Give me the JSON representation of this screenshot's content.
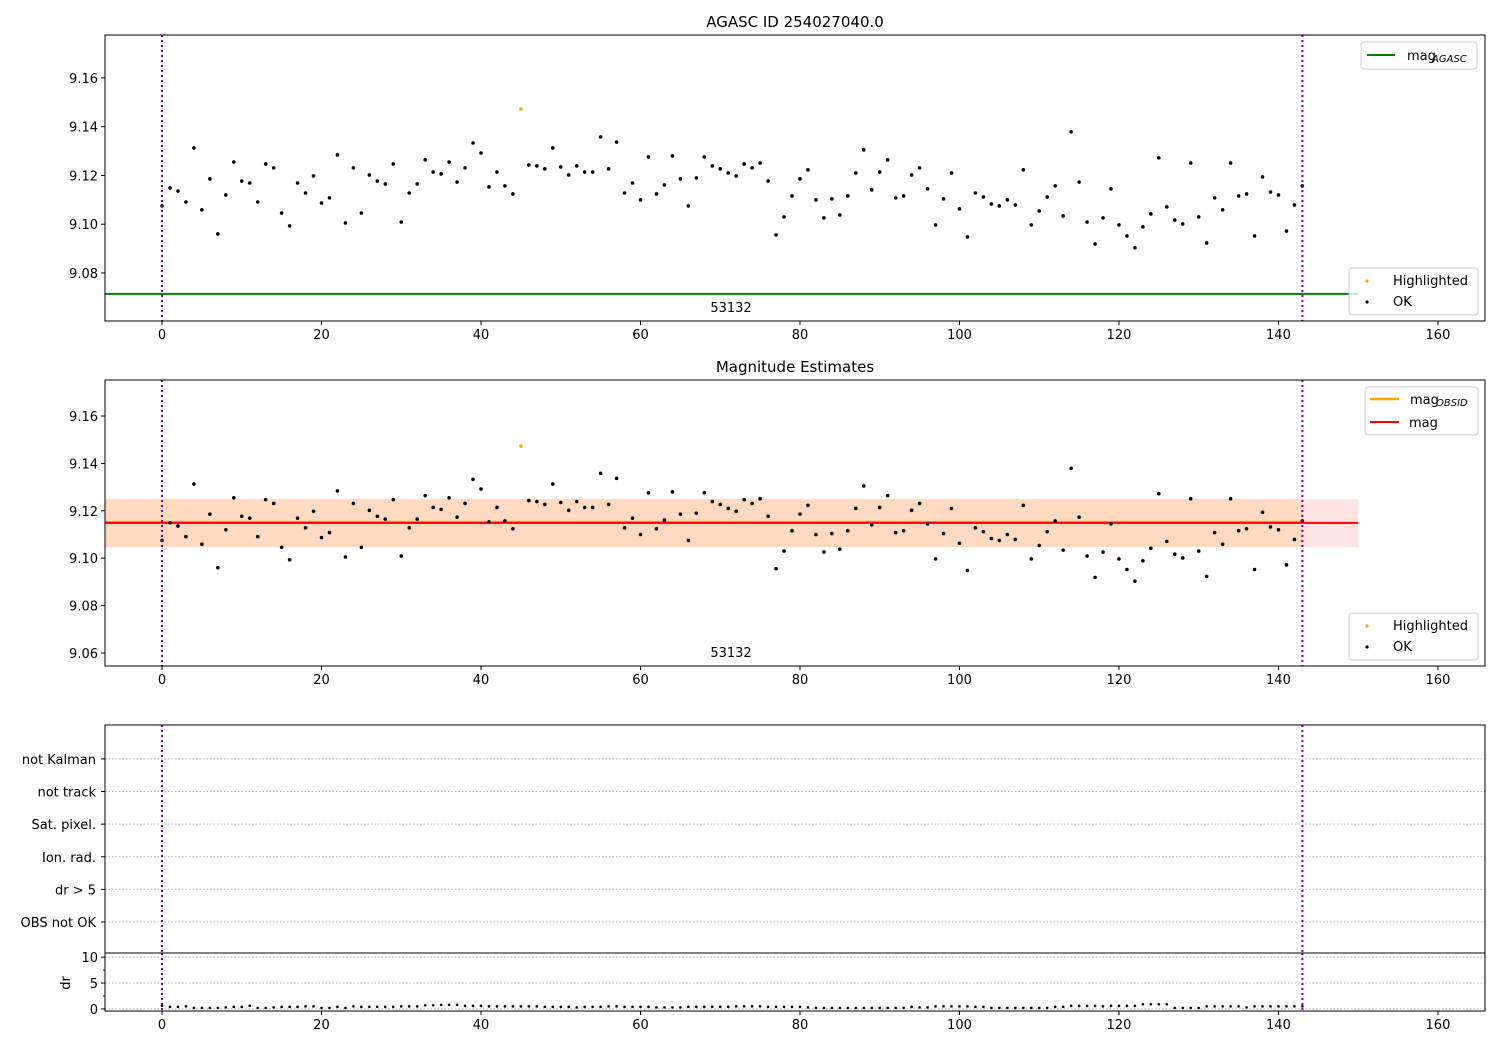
{
  "chart_data": [
    {
      "type": "scatter",
      "title": "AGASC ID 254027040.0",
      "xlim": [
        -7.15,
        165.9
      ],
      "ylim": [
        9.0603,
        9.1776
      ],
      "xticks": [
        0,
        20,
        40,
        60,
        80,
        100,
        120,
        140,
        160
      ],
      "yticks": [
        9.08,
        9.1,
        9.12,
        9.14,
        9.16
      ],
      "ytick_labels": [
        "9.08",
        "9.10",
        "9.12",
        "9.14",
        "9.16"
      ],
      "mag_agasc": 9.0714,
      "mag_agasc_xrange": [
        -7.15,
        150
      ],
      "annotation": "53132",
      "annotation_x": 71,
      "vlines": [
        0,
        143
      ],
      "legend_top": {
        "label": "mag",
        "sub": "AGASC",
        "color": "#008000",
        "placement": "top-right"
      },
      "legend_bottom": [
        {
          "label": "Highlighted",
          "color": "#ffa500"
        },
        {
          "label": "OK",
          "color": "#000000"
        }
      ],
      "legend_bottom_placement": "bottom-right"
    },
    {
      "type": "scatter",
      "title": "Magnitude Estimates",
      "xlim": [
        -7.15,
        165.9
      ],
      "ylim": [
        9.0545,
        9.1752
      ],
      "xticks": [
        0,
        20,
        40,
        60,
        80,
        100,
        120,
        140,
        160
      ],
      "yticks": [
        9.06,
        9.08,
        9.1,
        9.12,
        9.14,
        9.16
      ],
      "ytick_labels": [
        "9.06",
        "9.08",
        "9.10",
        "9.12",
        "9.14",
        "9.16"
      ],
      "mag": 9.1149,
      "mag_band": [
        9.1047,
        9.125
      ],
      "mag_xrange": [
        -7.15,
        150
      ],
      "mag_obsid": 9.1149,
      "mag_obsid_band": [
        9.1047,
        9.125
      ],
      "mag_obsid_xrange": [
        -7.15,
        143
      ],
      "annotation": "53132",
      "annotation_x": 71,
      "vlines": [
        0,
        143
      ],
      "legend_top": [
        {
          "label": "mag",
          "sub": "OBSID",
          "color": "#ffa500"
        },
        {
          "label": "mag",
          "sub": "",
          "color": "#ff0000"
        }
      ],
      "legend_bottom": [
        {
          "label": "Highlighted",
          "color": "#ffa500"
        },
        {
          "label": "OK",
          "color": "#000000"
        }
      ]
    },
    {
      "type": "table",
      "categories": [
        "OBS not OK",
        "dr > 5",
        "Ion. rad.",
        "Sat. pixel.",
        "not track",
        "not Kalman"
      ],
      "ylim": [
        -0.95,
        6.04
      ],
      "flags_set": [],
      "vlines": [
        0,
        143
      ]
    },
    {
      "type": "scatter",
      "ylabel": "dr",
      "ylim": [
        -0.4,
        10.8
      ],
      "yticks": [
        0,
        5,
        10
      ],
      "ytick_labels": [
        "0",
        "5",
        "10"
      ],
      "xticks": [
        0,
        20,
        40,
        60,
        80,
        100,
        120,
        140,
        160
      ],
      "vlines": [
        0,
        143
      ]
    }
  ],
  "series": {
    "highlighted_index": [
      45
    ],
    "mag_values": [
      9.1075,
      9.1149,
      9.1136,
      9.1091,
      9.1313,
      9.1059,
      9.1186,
      9.096,
      9.112,
      9.1255,
      9.1177,
      9.1169,
      9.1091,
      9.1247,
      9.1231,
      9.1046,
      9.0993,
      9.1169,
      9.1128,
      9.1198,
      9.1087,
      9.1108,
      9.1284,
      9.1005,
      9.1231,
      9.1046,
      9.1202,
      9.1177,
      9.1165,
      9.1247,
      9.1009,
      9.1128,
      9.1165,
      9.1264,
      9.1214,
      9.1206,
      9.1255,
      9.1173,
      9.1231,
      9.1333,
      9.1292,
      9.1153,
      9.1214,
      9.1157,
      9.1124,
      9.1473,
      9.1243,
      9.1239,
      9.1227,
      9.1313,
      9.1235,
      9.1202,
      9.1239,
      9.1214,
      9.1214,
      9.1358,
      9.1227,
      9.1337,
      9.1128,
      9.1169,
      9.11,
      9.1276,
      9.1124,
      9.1161,
      9.128,
      9.1186,
      9.1075,
      9.119,
      9.1276,
      9.1239,
      9.1227,
      9.121,
      9.1198,
      9.1247,
      9.1231,
      9.1251,
      9.1177,
      9.0956,
      9.103,
      9.1116,
      9.1186,
      9.1223,
      9.11,
      9.1026,
      9.1104,
      9.1038,
      9.1116,
      9.121,
      9.1305,
      9.1141,
      9.1214,
      9.1264,
      9.1108,
      9.1116,
      9.1202,
      9.1231,
      9.1145,
      9.0997,
      9.1104,
      9.121,
      9.1063,
      9.0948,
      9.1128,
      9.1112,
      9.1083,
      9.1075,
      9.11,
      9.1079,
      9.1223,
      9.0997,
      9.1054,
      9.1112,
      9.1157,
      9.1034,
      9.1379,
      9.1173,
      9.1009,
      9.0919,
      9.1026,
      9.1145,
      9.0997,
      9.0952,
      9.0903,
      9.0989,
      9.1042,
      9.1272,
      9.1071,
      9.1017,
      9.1001,
      9.1251,
      9.103,
      9.0923,
      9.1108,
      9.1059,
      9.1251,
      9.1116,
      9.1124,
      9.0952,
      9.1194,
      9.1132,
      9.112,
      9.0972,
      9.1079,
      9.1157
    ],
    "dr_values": [
      0.6,
      0.4,
      0.4,
      0.5,
      0.2,
      0.2,
      0.2,
      0.2,
      0.3,
      0.4,
      0.4,
      0.6,
      0.2,
      0.2,
      0.3,
      0.4,
      0.4,
      0.4,
      0.5,
      0.5,
      0.2,
      0.2,
      0.4,
      0.2,
      0.5,
      0.4,
      0.4,
      0.4,
      0.4,
      0.4,
      0.5,
      0.5,
      0.5,
      0.7,
      0.7,
      0.8,
      0.8,
      0.8,
      0.6,
      0.6,
      0.6,
      0.5,
      0.5,
      0.5,
      0.5,
      0.5,
      0.5,
      0.5,
      0.4,
      0.4,
      0.4,
      0.4,
      0.3,
      0.4,
      0.4,
      0.4,
      0.5,
      0.5,
      0.4,
      0.4,
      0.4,
      0.4,
      0.3,
      0.3,
      0.3,
      0.3,
      0.4,
      0.4,
      0.4,
      0.4,
      0.4,
      0.4,
      0.5,
      0.5,
      0.5,
      0.5,
      0.4,
      0.4,
      0.4,
      0.4,
      0.4,
      0.3,
      0.2,
      0.2,
      0.2,
      0.2,
      0.2,
      0.2,
      0.2,
      0.2,
      0.2,
      0.2,
      0.2,
      0.2,
      0.4,
      0.3,
      0.3,
      0.5,
      0.5,
      0.5,
      0.5,
      0.5,
      0.4,
      0.4,
      0.2,
      0.2,
      0.2,
      0.2,
      0.2,
      0.2,
      0.2,
      0.2,
      0.4,
      0.4,
      0.6,
      0.6,
      0.6,
      0.6,
      0.5,
      0.6,
      0.6,
      0.6,
      0.6,
      0.9,
      0.9,
      0.9,
      0.9,
      0.2,
      0.2,
      0.2,
      0.2,
      0.5,
      0.5,
      0.5,
      0.5,
      0.5,
      0.3,
      0.5,
      0.5,
      0.5,
      0.5,
      0.5,
      0.5,
      0.5
    ]
  }
}
